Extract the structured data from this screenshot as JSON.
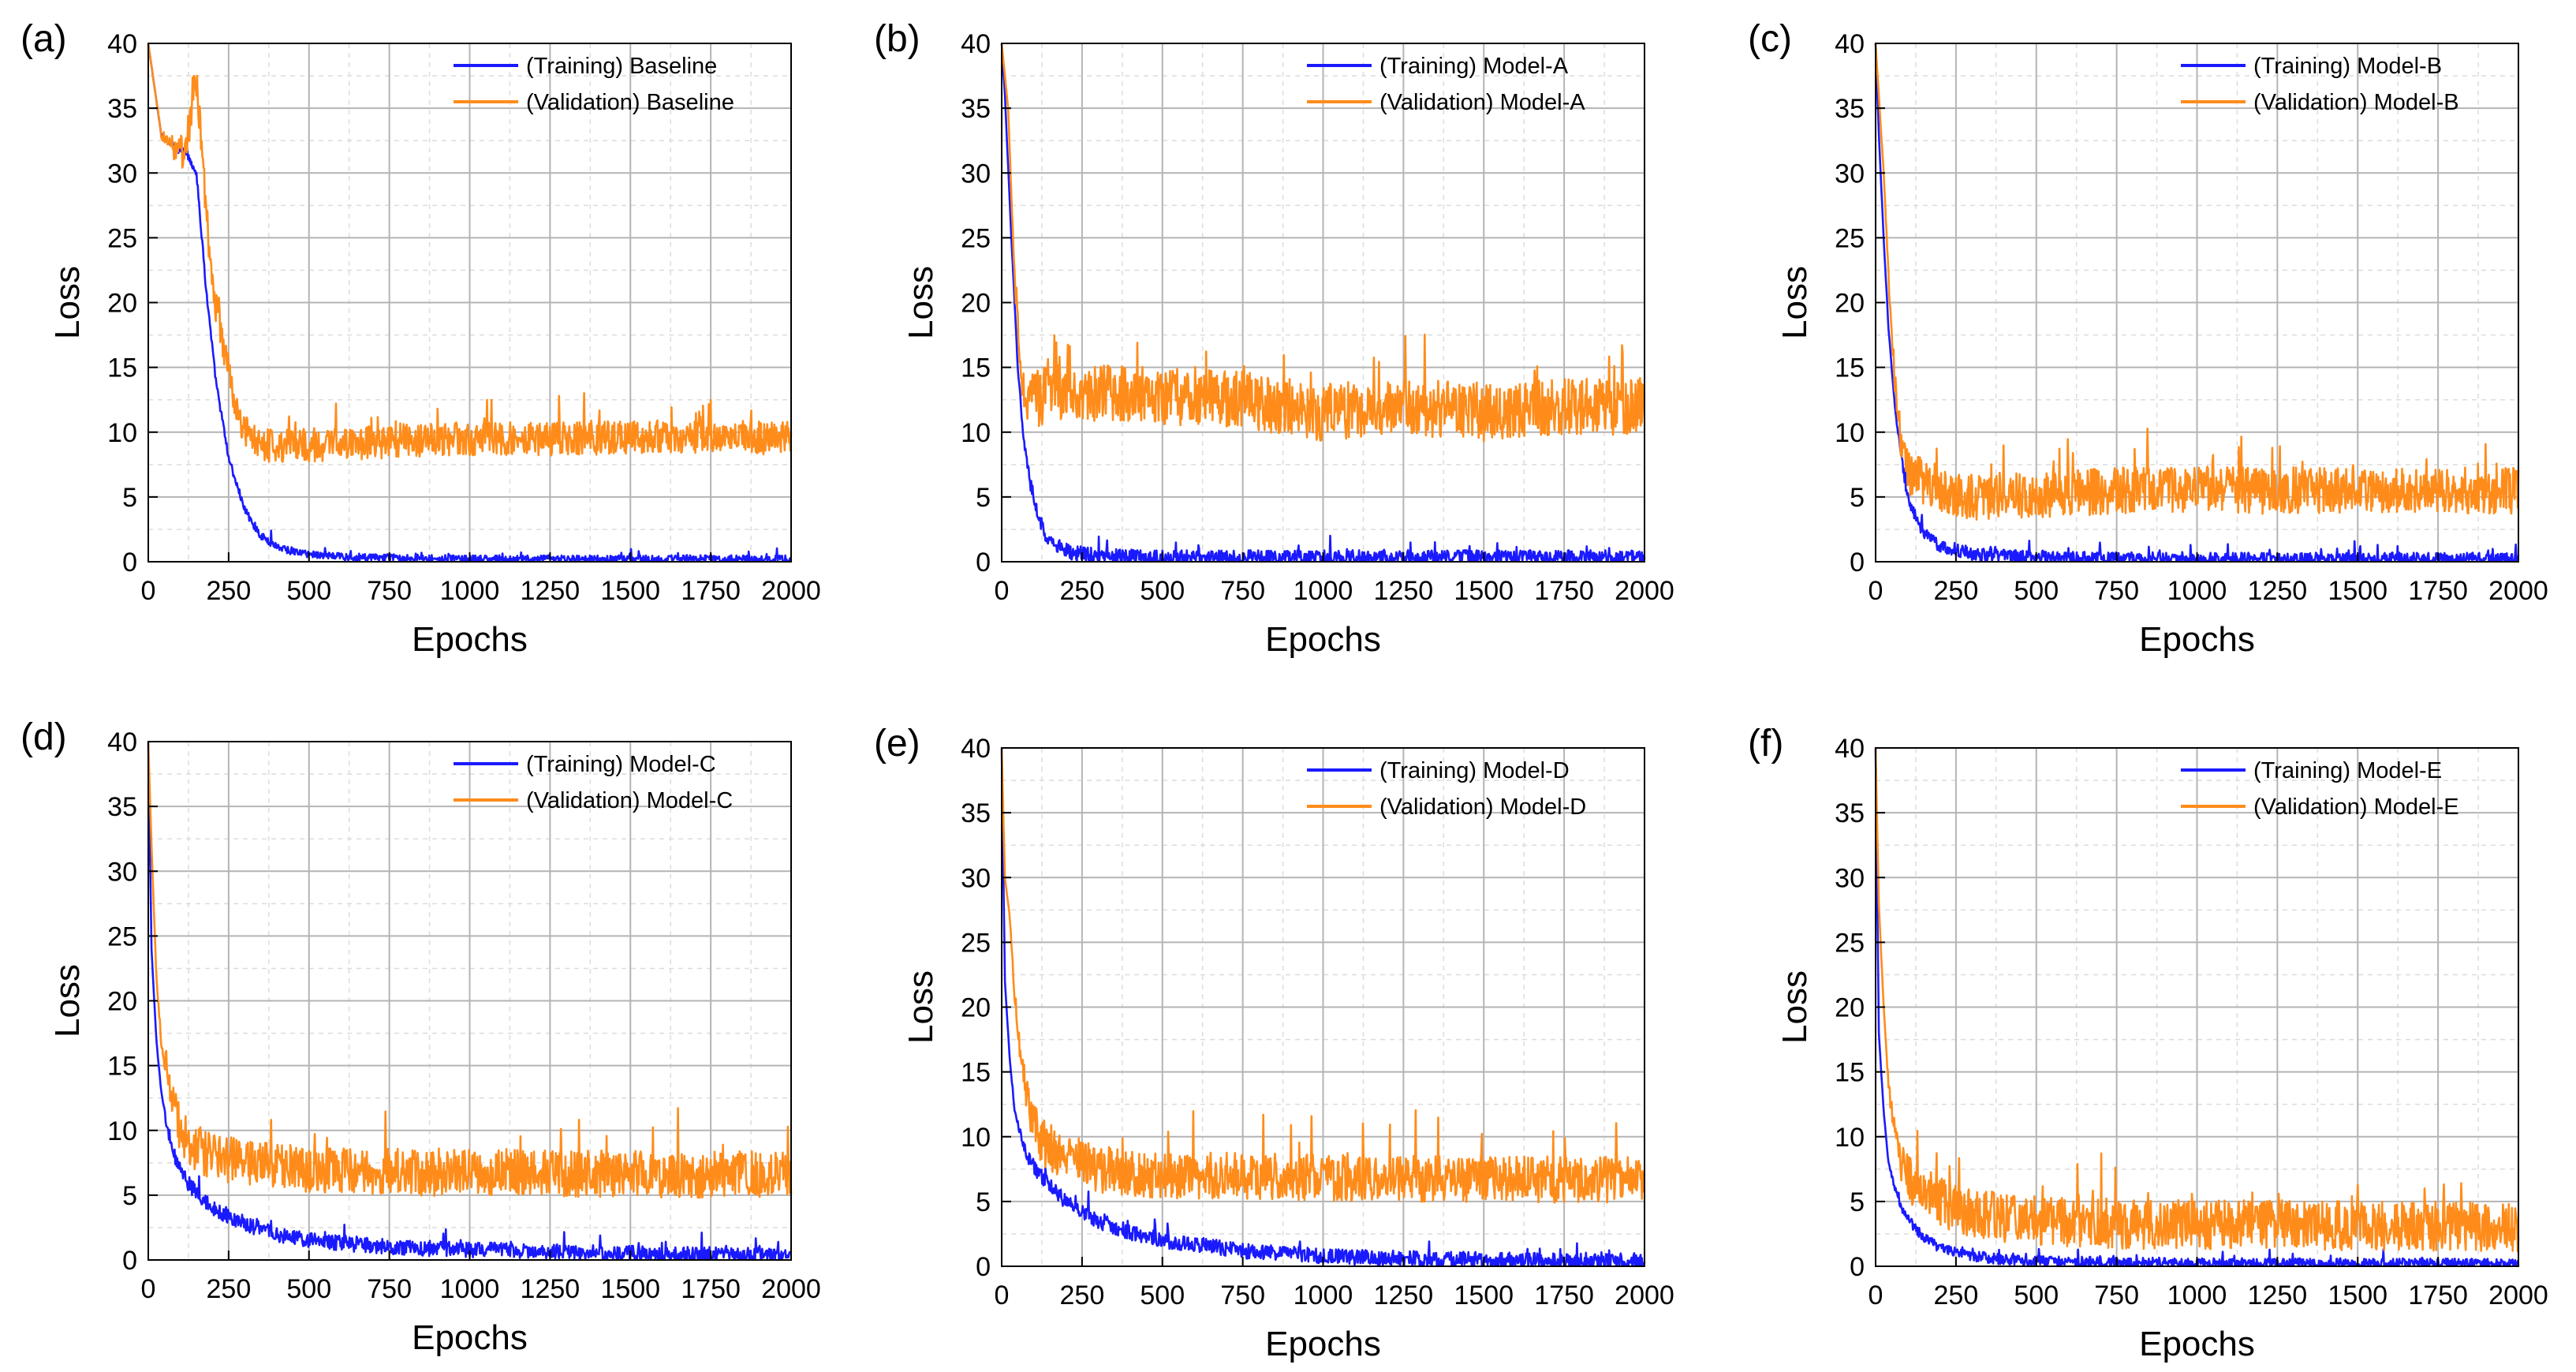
{
  "chart_data": [
    {
      "panel": "(a)",
      "type": "line",
      "xlabel": "Epochs",
      "ylabel": "Loss",
      "xlim": [
        0,
        2000
      ],
      "ylim": [
        0,
        40
      ],
      "xticks": [
        0,
        250,
        500,
        750,
        1000,
        1250,
        1500,
        1750,
        2000
      ],
      "yticks": [
        0,
        5,
        10,
        15,
        20,
        25,
        30,
        35,
        40
      ],
      "grid": true,
      "legend_position": "top-right",
      "series": [
        {
          "name": "(Training) Baseline",
          "color": "#1a1aff",
          "x": [
            0,
            40,
            80,
            120,
            150,
            180,
            210,
            250,
            300,
            350,
            400,
            450,
            500,
            600,
            700,
            800,
            900,
            1000,
            1250,
            1500,
            1750,
            2000
          ],
          "values": [
            40,
            33,
            32,
            31.5,
            30,
            21,
            14,
            8,
            4,
            2,
            1.2,
            0.8,
            0.6,
            0.4,
            0.3,
            0.3,
            0.25,
            0.2,
            0.2,
            0.2,
            0.2,
            0.2
          ],
          "noise": 0.3
        },
        {
          "name": "(Validation) Baseline",
          "color": "#ff8c1a",
          "x": [
            0,
            40,
            80,
            120,
            140,
            150,
            160,
            180,
            200,
            240,
            280,
            320,
            360,
            400,
            500,
            750,
            1000,
            1250,
            1500,
            1750,
            2000
          ],
          "values": [
            40,
            33,
            32,
            31.5,
            36,
            37,
            34,
            27,
            21,
            16,
            11,
            9.5,
            9,
            9,
            9,
            9.3,
            9.5,
            9.5,
            9.6,
            9.7,
            9.5
          ],
          "noise": 1.3
        }
      ]
    },
    {
      "panel": "(b)",
      "type": "line",
      "xlabel": "Epochs",
      "ylabel": "Loss",
      "xlim": [
        0,
        2000
      ],
      "ylim": [
        0,
        40
      ],
      "xticks": [
        0,
        250,
        500,
        750,
        1000,
        1250,
        1500,
        1750,
        2000
      ],
      "yticks": [
        0,
        5,
        10,
        15,
        20,
        25,
        30,
        35,
        40
      ],
      "grid": true,
      "legend_position": "top-right",
      "series": [
        {
          "name": "(Training) Model-A",
          "color": "#1a1aff",
          "x": [
            0,
            10,
            30,
            50,
            70,
            90,
            120,
            150,
            200,
            300,
            500,
            1000,
            1500,
            2000
          ],
          "values": [
            40,
            36,
            25,
            15,
            9,
            6,
            3,
            1.5,
            0.8,
            0.4,
            0.3,
            0.3,
            0.3,
            0.3
          ],
          "noise": 0.6
        },
        {
          "name": "(Validation) Model-A",
          "color": "#ff8c1a",
          "x": [
            0,
            20,
            40,
            60,
            80,
            100,
            150,
            250,
            500,
            750,
            1000,
            1250,
            1500,
            1750,
            2000
          ],
          "values": [
            40,
            35,
            22,
            14,
            12.5,
            12.5,
            13,
            13,
            12.8,
            12.5,
            11.5,
            12,
            11.5,
            12,
            12
          ],
          "noise": 2.2
        }
      ]
    },
    {
      "panel": "(c)",
      "type": "line",
      "xlabel": "Epochs",
      "ylabel": "Loss",
      "xlim": [
        0,
        2000
      ],
      "ylim": [
        0,
        40
      ],
      "xticks": [
        0,
        250,
        500,
        750,
        1000,
        1250,
        1500,
        1750,
        2000
      ],
      "yticks": [
        0,
        5,
        10,
        15,
        20,
        25,
        30,
        35,
        40
      ],
      "grid": true,
      "legend_position": "top-right",
      "series": [
        {
          "name": "(Training) Model-B",
          "color": "#1a1aff",
          "x": [
            0,
            10,
            25,
            40,
            60,
            80,
            100,
            130,
            160,
            200,
            300,
            500,
            1000,
            1500,
            2000
          ],
          "values": [
            40,
            33,
            25,
            18,
            12,
            8,
            5,
            3,
            2,
            1.2,
            0.6,
            0.3,
            0.2,
            0.2,
            0.2
          ],
          "noise": 0.5
        },
        {
          "name": "(Validation) Model-B",
          "color": "#ff8c1a",
          "x": [
            0,
            10,
            25,
            40,
            60,
            80,
            100,
            130,
            160,
            200,
            300,
            500,
            750,
            1000,
            1250,
            1500,
            1750,
            2000
          ],
          "values": [
            40,
            36,
            30,
            22,
            14,
            9,
            7,
            6.5,
            6,
            5.5,
            5,
            5.2,
            5.5,
            5.5,
            5.5,
            5.5,
            5.5,
            5.5
          ],
          "noise": 1.8
        }
      ]
    },
    {
      "panel": "(d)",
      "type": "line",
      "xlabel": "Epochs",
      "ylabel": "Loss",
      "xlim": [
        0,
        2000
      ],
      "ylim": [
        0,
        40
      ],
      "xticks": [
        0,
        250,
        500,
        750,
        1000,
        1250,
        1500,
        1750,
        2000
      ],
      "yticks": [
        0,
        5,
        10,
        15,
        20,
        25,
        30,
        35,
        40
      ],
      "grid": true,
      "legend_position": "top-right",
      "series": [
        {
          "name": "(Training) Model-C",
          "color": "#1a1aff",
          "x": [
            0,
            10,
            25,
            40,
            60,
            80,
            120,
            160,
            200,
            300,
            400,
            500,
            750,
            1000,
            1250,
            1500,
            1750,
            2000
          ],
          "values": [
            40,
            24,
            17,
            13,
            10,
            8,
            6,
            5,
            4,
            2.8,
            2,
            1.5,
            1,
            0.8,
            0.6,
            0.5,
            0.4,
            0.3
          ],
          "noise": 0.6
        },
        {
          "name": "(Validation) Model-C",
          "color": "#ff8c1a",
          "x": [
            0,
            10,
            25,
            40,
            60,
            80,
            100,
            130,
            160,
            200,
            300,
            500,
            750,
            1000,
            1250,
            1500,
            1750,
            2000
          ],
          "values": [
            40,
            32,
            22,
            17,
            14,
            12,
            10,
            9,
            8.5,
            8,
            7.5,
            7,
            6.8,
            6.7,
            6.7,
            6.6,
            6.6,
            6.6
          ],
          "noise": 1.8
        }
      ]
    },
    {
      "panel": "(e)",
      "type": "line",
      "xlabel": "Epochs",
      "ylabel": "Loss",
      "xlim": [
        0,
        2000
      ],
      "ylim": [
        0,
        40
      ],
      "xticks": [
        0,
        250,
        500,
        750,
        1000,
        1250,
        1500,
        1750,
        2000
      ],
      "yticks": [
        0,
        5,
        10,
        15,
        20,
        25,
        30,
        35,
        40
      ],
      "grid": true,
      "legend_position": "top-right",
      "series": [
        {
          "name": "(Training) Model-D",
          "color": "#1a1aff",
          "x": [
            0,
            10,
            25,
            40,
            60,
            80,
            120,
            160,
            200,
            300,
            400,
            500,
            750,
            1000,
            1250,
            1500,
            1750,
            2000
          ],
          "values": [
            40,
            22,
            16,
            12,
            10,
            8.5,
            7,
            6,
            5,
            3.5,
            2.6,
            2,
            1.2,
            0.8,
            0.6,
            0.5,
            0.4,
            0.3
          ],
          "noise": 0.6
        },
        {
          "name": "(Validation) Model-D",
          "color": "#ff8c1a",
          "x": [
            0,
            10,
            25,
            40,
            60,
            80,
            100,
            130,
            160,
            200,
            300,
            500,
            750,
            1000,
            1250,
            1500,
            1750,
            2000
          ],
          "values": [
            40,
            30,
            27,
            21,
            16,
            13,
            11,
            9.5,
            9,
            8.5,
            7.5,
            7,
            7,
            6.8,
            6.8,
            6.7,
            6.7,
            6.7
          ],
          "noise": 1.8
        }
      ]
    },
    {
      "panel": "(f)",
      "type": "line",
      "xlabel": "Epochs",
      "ylabel": "Loss",
      "xlim": [
        0,
        2000
      ],
      "ylim": [
        0,
        40
      ],
      "xticks": [
        0,
        250,
        500,
        750,
        1000,
        1250,
        1500,
        1750,
        2000
      ],
      "yticks": [
        0,
        5,
        10,
        15,
        20,
        25,
        30,
        35,
        40
      ],
      "grid": true,
      "legend_position": "top-right",
      "series": [
        {
          "name": "(Training) Model-E",
          "color": "#1a1aff",
          "x": [
            0,
            10,
            25,
            40,
            60,
            80,
            120,
            160,
            200,
            300,
            400,
            500,
            750,
            1000,
            1500,
            2000
          ],
          "values": [
            40,
            18,
            12,
            8,
            6,
            4.5,
            3,
            2,
            1.4,
            0.8,
            0.5,
            0.4,
            0.3,
            0.25,
            0.2,
            0.2
          ],
          "noise": 0.4
        },
        {
          "name": "(Validation) Model-E",
          "color": "#ff8c1a",
          "x": [
            0,
            10,
            25,
            40,
            60,
            80,
            100,
            130,
            160,
            200,
            300,
            500,
            750,
            1000,
            1250,
            1500,
            1750,
            2000
          ],
          "values": [
            40,
            28,
            20,
            14,
            10,
            8,
            7,
            6,
            5.5,
            5,
            4,
            3.5,
            3.2,
            3.2,
            3.2,
            3.1,
            3.1,
            3
          ],
          "noise": 1.9
        }
      ]
    }
  ]
}
